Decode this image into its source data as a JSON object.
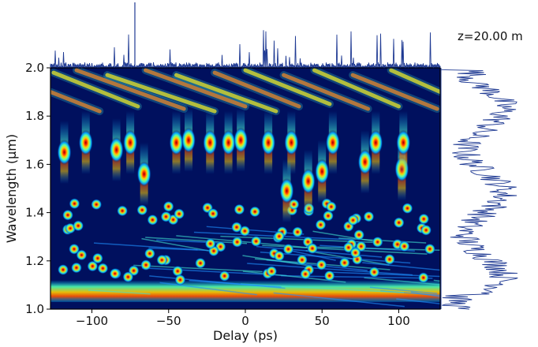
{
  "chart_data": {
    "type": "heatmap",
    "title": "",
    "annotation": "z=20.00 m",
    "xlabel": "Delay (ps)",
    "ylabel": "Wavelength (µm)",
    "xlim": [
      -127,
      127
    ],
    "ylim": [
      1.0,
      2.0
    ],
    "x_ticks": [
      -100,
      -50,
      0,
      50,
      100
    ],
    "x_tick_labels": [
      "−100",
      "−50",
      "0",
      "50",
      "100"
    ],
    "y_ticks": [
      1.0,
      1.2,
      1.4,
      1.6,
      1.8,
      2.0
    ],
    "y_tick_labels": [
      "1.0",
      "1.2",
      "1.4",
      "1.6",
      "1.8",
      "2.0"
    ],
    "colormap": "jet",
    "background_color": "#00105e",
    "top_marginal": "temporal intensity profile",
    "right_marginal": "spectrum",
    "marginal_color": "#1f3a93",
    "solitons": [
      {
        "delay": -118,
        "wavelength": 1.65
      },
      {
        "delay": -104,
        "wavelength": 1.69
      },
      {
        "delay": -84,
        "wavelength": 1.66
      },
      {
        "delay": -75,
        "wavelength": 1.69
      },
      {
        "delay": -66,
        "wavelength": 1.56
      },
      {
        "delay": -45,
        "wavelength": 1.69
      },
      {
        "delay": -37,
        "wavelength": 1.7
      },
      {
        "delay": -23,
        "wavelength": 1.69
      },
      {
        "delay": -11,
        "wavelength": 1.69
      },
      {
        "delay": -3,
        "wavelength": 1.7
      },
      {
        "delay": 15,
        "wavelength": 1.69
      },
      {
        "delay": 30,
        "wavelength": 1.69
      },
      {
        "delay": 27,
        "wavelength": 1.49
      },
      {
        "delay": 41,
        "wavelength": 1.53
      },
      {
        "delay": 50,
        "wavelength": 1.57
      },
      {
        "delay": 57,
        "wavelength": 1.69
      },
      {
        "delay": 78,
        "wavelength": 1.61
      },
      {
        "delay": 85,
        "wavelength": 1.69
      },
      {
        "delay": 102,
        "wavelength": 1.58
      },
      {
        "delay": 103,
        "wavelength": 1.69
      }
    ]
  }
}
